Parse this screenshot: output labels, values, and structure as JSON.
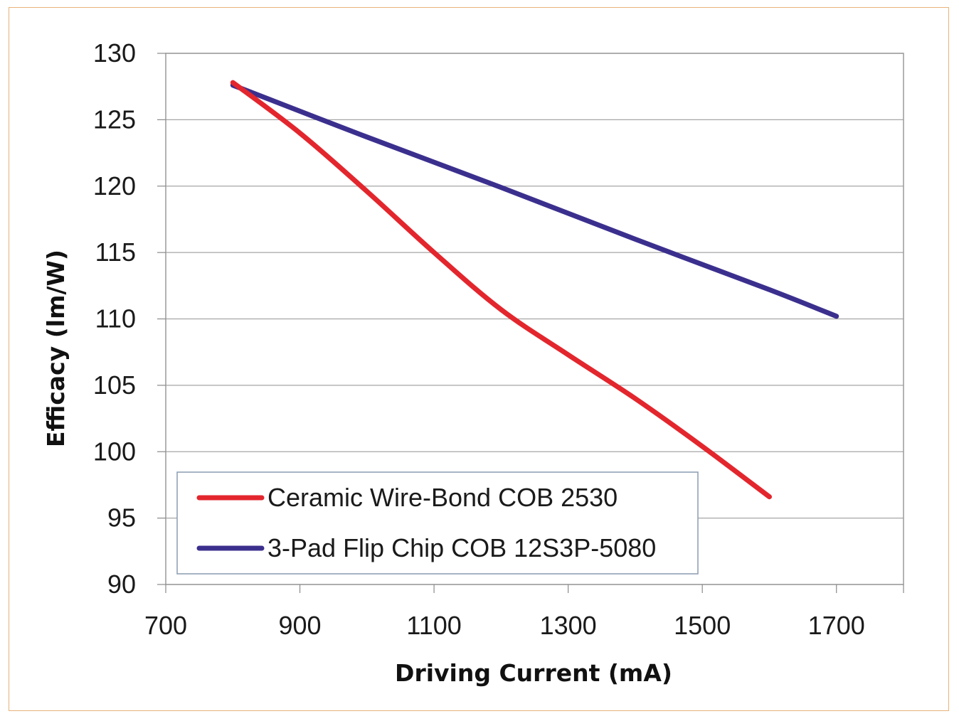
{
  "chart_data": {
    "type": "line",
    "title": "",
    "xlabel": "Driving Current (mA)",
    "ylabel": "Efficacy (lm/W)",
    "xlim": [
      700,
      1800
    ],
    "ylim": [
      90,
      130
    ],
    "xticks": [
      700,
      900,
      1100,
      1300,
      1500,
      1700
    ],
    "yticks": [
      90,
      95,
      100,
      105,
      110,
      115,
      120,
      125,
      130
    ],
    "grid": "horizontal",
    "legend_position": "bottom-left",
    "series": [
      {
        "name": "Ceramic Wire-Bond COB 2530",
        "color": "#e3262d",
        "x": [
          800,
          900,
          1000,
          1100,
          1200,
          1300,
          1400,
          1500,
          1600
        ],
        "y": [
          127.8,
          124.0,
          119.6,
          115.0,
          110.7,
          107.3,
          104.0,
          100.4,
          96.6
        ]
      },
      {
        "name": "3-Pad Flip Chip COB 12S3P-5080",
        "color": "#3b2f8e",
        "x": [
          800,
          1000,
          1200,
          1400,
          1600,
          1700
        ],
        "y": [
          127.6,
          123.7,
          119.9,
          116.0,
          112.2,
          110.2
        ]
      }
    ]
  }
}
